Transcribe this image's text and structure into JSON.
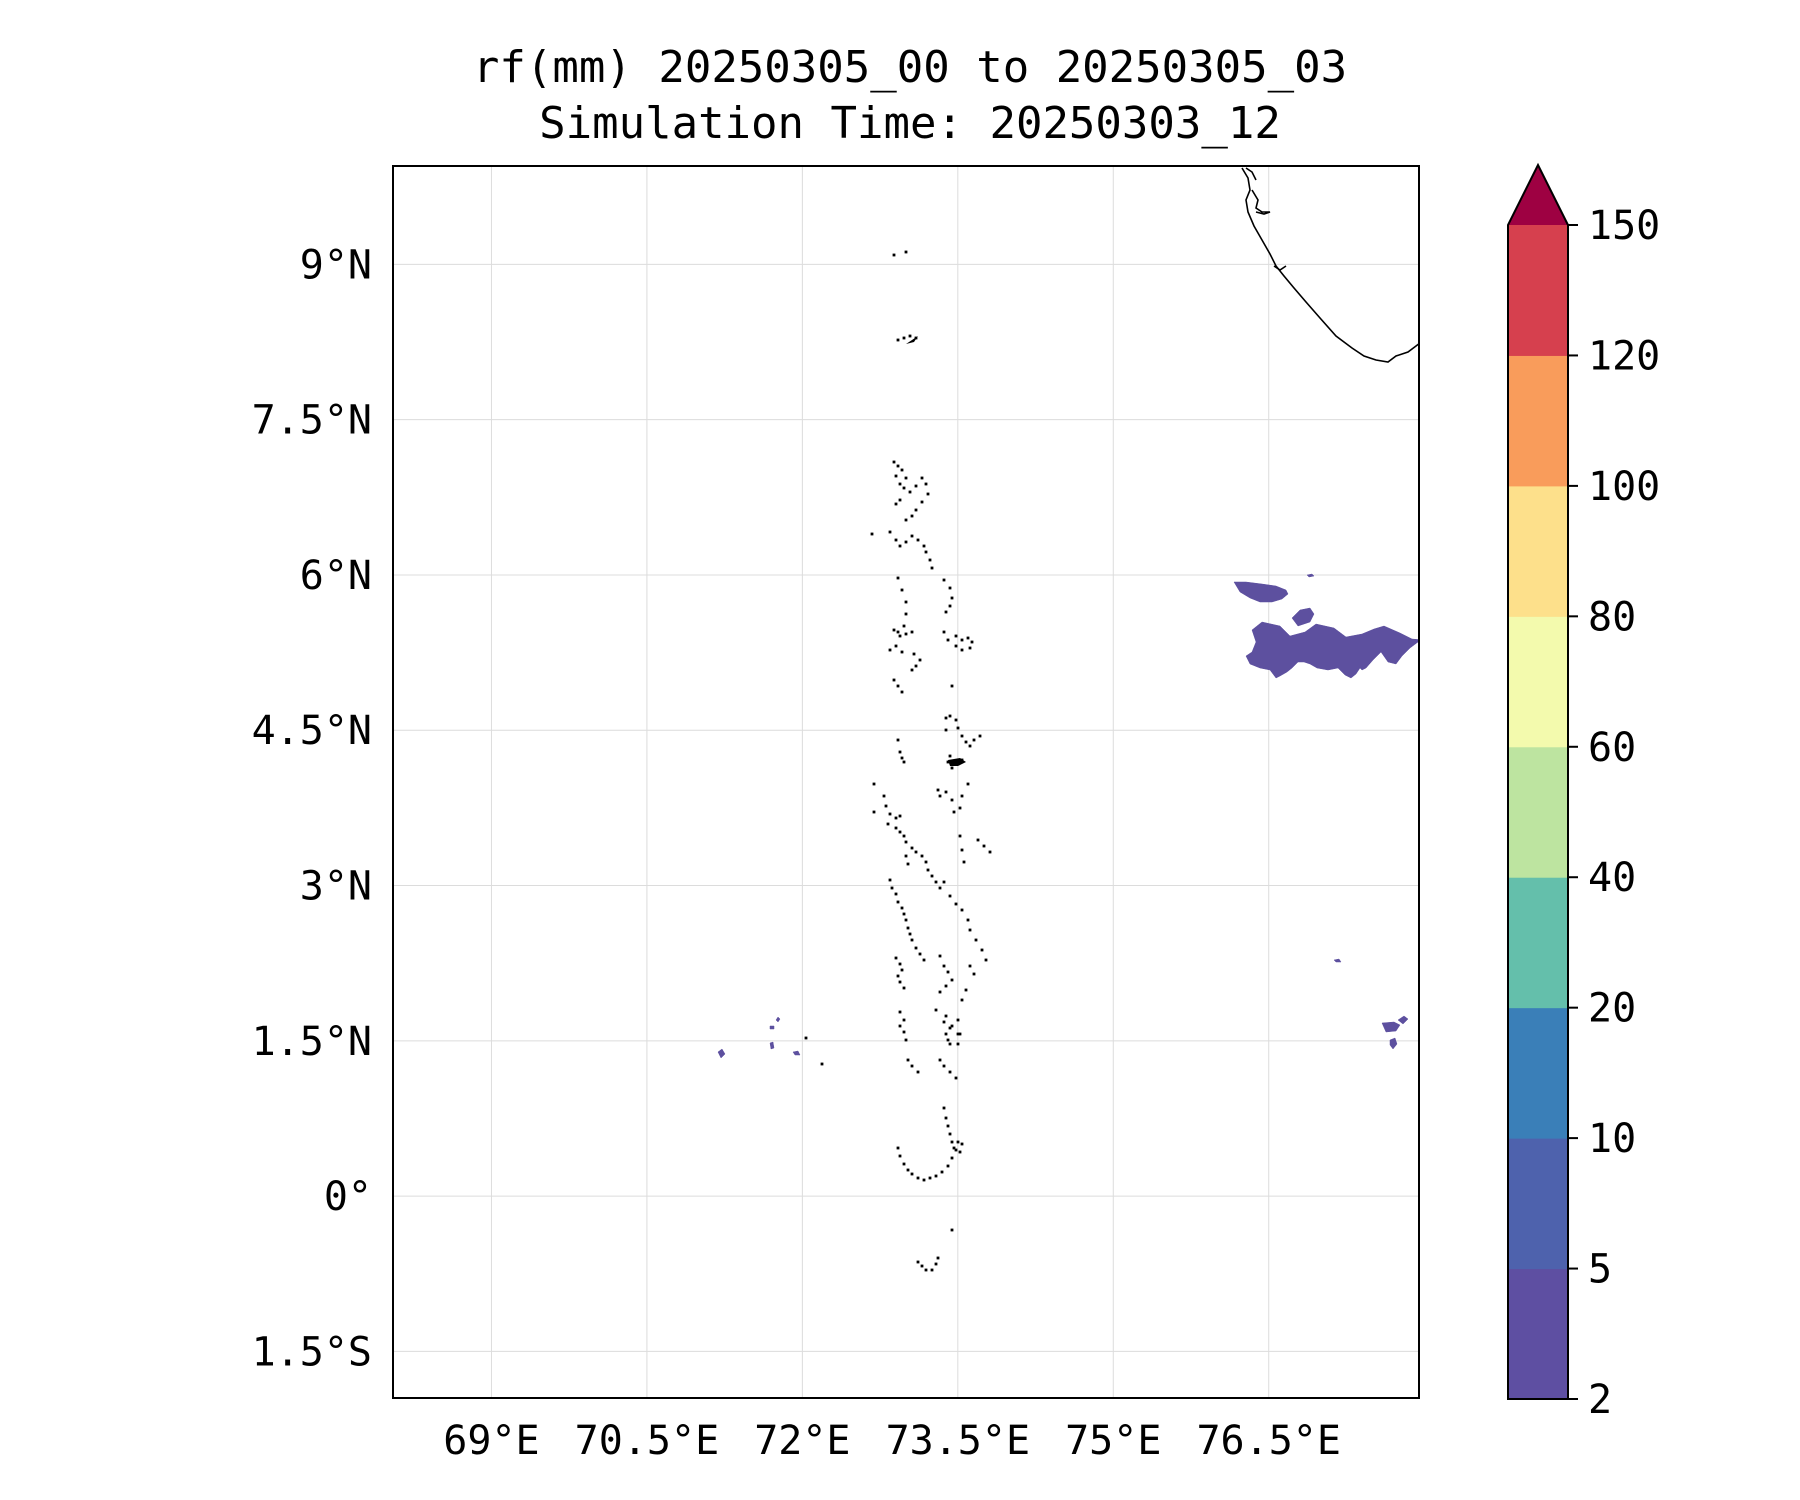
{
  "title": {
    "line1": "rf(mm) 20250305_00 to 20250305_03",
    "line2": "Simulation Time: 20250303_12"
  },
  "map": {
    "lon_range": [
      68.05,
      77.95
    ],
    "lat_range": [
      -1.95,
      9.95
    ],
    "lon_ticks": [
      {
        "value": 69.0,
        "label": "69°E"
      },
      {
        "value": 70.5,
        "label": "70.5°E"
      },
      {
        "value": 72.0,
        "label": "72°E"
      },
      {
        "value": 73.5,
        "label": "73.5°E"
      },
      {
        "value": 75.0,
        "label": "75°E"
      },
      {
        "value": 76.5,
        "label": "76.5°E"
      }
    ],
    "lat_ticks": [
      {
        "value": 9.0,
        "label": "9°N"
      },
      {
        "value": 7.5,
        "label": "7.5°N"
      },
      {
        "value": 6.0,
        "label": "6°N"
      },
      {
        "value": 4.5,
        "label": "4.5°N"
      },
      {
        "value": 3.0,
        "label": "3°N"
      },
      {
        "value": 1.5,
        "label": "1.5°N"
      },
      {
        "value": 0.0,
        "label": "0°"
      },
      {
        "value": -1.5,
        "label": "1.5°S"
      }
    ],
    "gridlines": true
  },
  "colorbar": {
    "levels": [
      2,
      5,
      10,
      20,
      40,
      60,
      80,
      100,
      120,
      150
    ],
    "tick_labels": [
      "2",
      "5",
      "10",
      "20",
      "40",
      "60",
      "80",
      "100",
      "120",
      "150"
    ],
    "colors": [
      "#5e4fa2",
      "#4e62ad",
      "#3a7fb8",
      "#64bfab",
      "#bde4a0",
      "#f3faad",
      "#fde08b",
      "#f99c5b",
      "#d6404e"
    ],
    "extend_color": "#9e0142",
    "extend": "max"
  }
}
